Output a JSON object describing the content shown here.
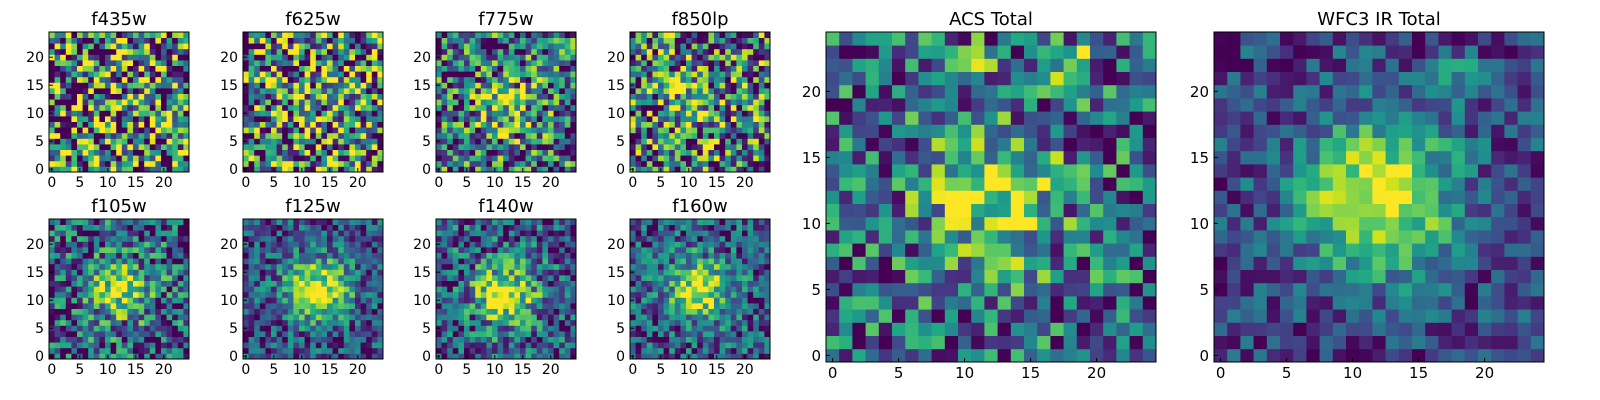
{
  "chart_data": [
    {
      "type": "heatmap",
      "title": "f435w",
      "grid_size": 25,
      "xlim": [
        0,
        24
      ],
      "ylim": [
        0,
        24
      ],
      "xticks": [
        "0",
        "5",
        "10",
        "15",
        "20"
      ],
      "yticks": [
        "0",
        "5",
        "10",
        "15",
        "20"
      ],
      "grid": false,
      "colormap": "viridis",
      "center": [
        12,
        12
      ],
      "peak_strength": 0.05,
      "noise_level": 0.95,
      "hotspots": [],
      "seed": 11
    },
    {
      "type": "heatmap",
      "title": "f625w",
      "grid_size": 25,
      "xlim": [
        0,
        24
      ],
      "ylim": [
        0,
        24
      ],
      "xticks": [
        "0",
        "5",
        "10",
        "15",
        "20"
      ],
      "yticks": [
        "0",
        "5",
        "10",
        "15",
        "20"
      ],
      "grid": false,
      "colormap": "viridis",
      "center": [
        12,
        12
      ],
      "peak_strength": 0.15,
      "noise_level": 0.85,
      "hotspots": [],
      "seed": 23
    },
    {
      "type": "heatmap",
      "title": "f775w",
      "grid_size": 25,
      "xlim": [
        0,
        24
      ],
      "ylim": [
        0,
        24
      ],
      "xticks": [
        "0",
        "5",
        "10",
        "15",
        "20"
      ],
      "yticks": [
        "0",
        "5",
        "10",
        "15",
        "20"
      ],
      "grid": false,
      "colormap": "viridis",
      "center": [
        12,
        11
      ],
      "peak_strength": 0.45,
      "noise_level": 0.7,
      "hotspots": [],
      "seed": 37
    },
    {
      "type": "heatmap",
      "title": "f850lp",
      "grid_size": 25,
      "xlim": [
        0,
        24
      ],
      "ylim": [
        0,
        24
      ],
      "xticks": [
        "0",
        "5",
        "10",
        "15",
        "20"
      ],
      "yticks": [
        "0",
        "5",
        "10",
        "15",
        "20"
      ],
      "grid": false,
      "colormap": "viridis",
      "center": [
        11,
        12
      ],
      "peak_strength": 0.35,
      "noise_level": 0.8,
      "hotspots": [],
      "seed": 41
    },
    {
      "type": "heatmap",
      "title": "f105w",
      "grid_size": 25,
      "xlim": [
        0,
        24
      ],
      "ylim": [
        0,
        24
      ],
      "xticks": [
        "0",
        "5",
        "10",
        "15",
        "20"
      ],
      "yticks": [
        "0",
        "5",
        "10",
        "15",
        "20"
      ],
      "grid": false,
      "colormap": "viridis",
      "center": [
        12,
        12
      ],
      "peak_strength": 0.6,
      "noise_level": 0.55,
      "hotspots": [],
      "seed": 53
    },
    {
      "type": "heatmap",
      "title": "f125w",
      "grid_size": 25,
      "xlim": [
        0,
        24
      ],
      "ylim": [
        0,
        24
      ],
      "xticks": [
        "0",
        "5",
        "10",
        "15",
        "20"
      ],
      "yticks": [
        "0",
        "5",
        "10",
        "15",
        "20"
      ],
      "grid": false,
      "colormap": "viridis",
      "center": [
        13,
        12
      ],
      "peak_strength": 0.75,
      "noise_level": 0.4,
      "hotspots": [],
      "seed": 67
    },
    {
      "type": "heatmap",
      "title": "f140w",
      "grid_size": 25,
      "xlim": [
        0,
        24
      ],
      "ylim": [
        0,
        24
      ],
      "xticks": [
        "0",
        "5",
        "10",
        "15",
        "20"
      ],
      "yticks": [
        "0",
        "5",
        "10",
        "15",
        "20"
      ],
      "grid": false,
      "colormap": "viridis",
      "center": [
        12,
        11
      ],
      "peak_strength": 0.65,
      "noise_level": 0.5,
      "hotspots": [],
      "seed": 71
    },
    {
      "type": "heatmap",
      "title": "f160w",
      "grid_size": 25,
      "xlim": [
        0,
        24
      ],
      "ylim": [
        0,
        24
      ],
      "xticks": [
        "0",
        "5",
        "10",
        "15",
        "20"
      ],
      "yticks": [
        "0",
        "5",
        "10",
        "15",
        "20"
      ],
      "grid": false,
      "colormap": "viridis",
      "center": [
        12,
        12
      ],
      "peak_strength": 0.7,
      "noise_level": 0.45,
      "hotspots": [],
      "seed": 83
    },
    {
      "type": "heatmap",
      "title": "ACS Total",
      "grid_size": 25,
      "xlim": [
        0,
        24
      ],
      "ylim": [
        0,
        24
      ],
      "xticks": [
        "0",
        "5",
        "10",
        "15",
        "20"
      ],
      "yticks": [
        "0",
        "5",
        "10",
        "15",
        "20"
      ],
      "grid": false,
      "colormap": "viridis",
      "center": [
        12,
        12
      ],
      "peak_strength": 0.55,
      "noise_level": 0.55,
      "hotspots": [
        [
          10,
          22,
          0.5
        ],
        [
          18,
          22,
          0.6
        ]
      ],
      "seed": 97
    },
    {
      "type": "heatmap",
      "title": "WFC3 IR Total",
      "grid_size": 25,
      "xlim": [
        0,
        24
      ],
      "ylim": [
        0,
        24
      ],
      "xticks": [
        "0",
        "5",
        "10",
        "15",
        "20"
      ],
      "yticks": [
        "0",
        "5",
        "10",
        "15",
        "20"
      ],
      "grid": false,
      "colormap": "viridis",
      "center": [
        12,
        12
      ],
      "peak_strength": 0.85,
      "noise_level": 0.3,
      "hotspots": [
        [
          18,
          21,
          0.35
        ]
      ],
      "seed": 103
    }
  ]
}
